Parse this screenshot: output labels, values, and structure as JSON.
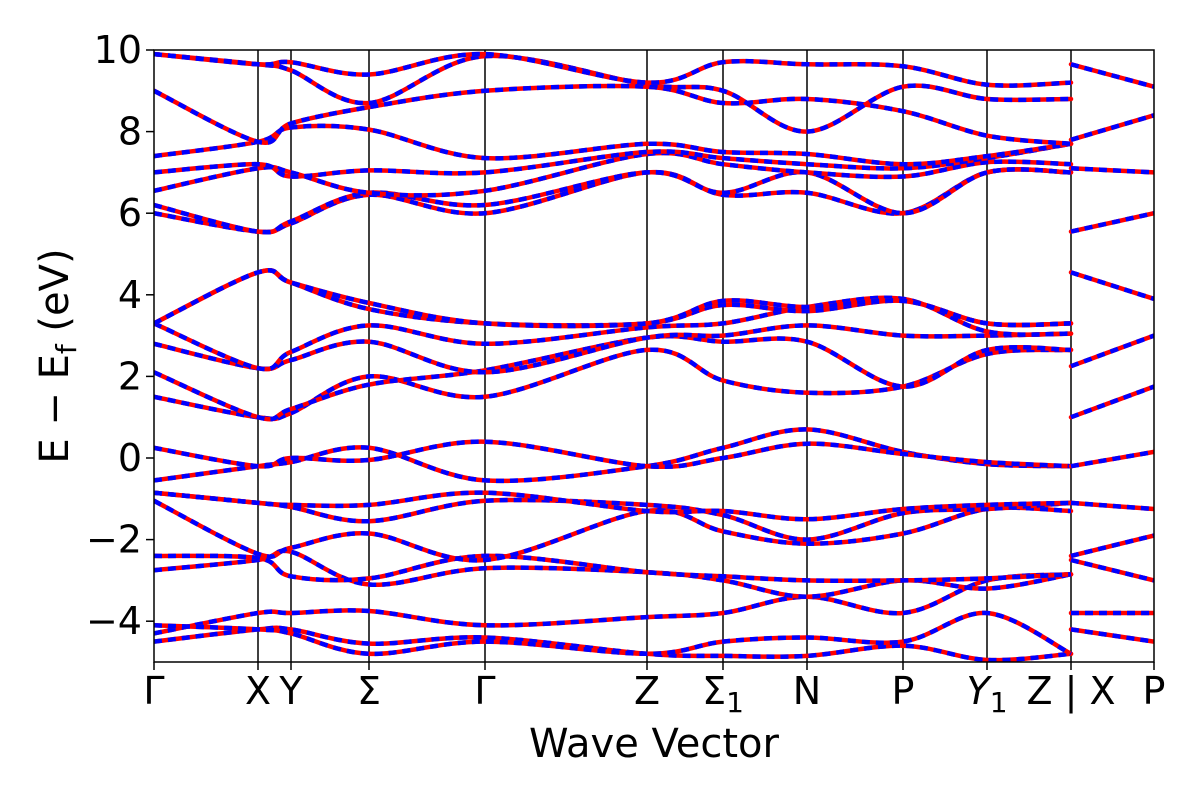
{
  "chart_data": {
    "type": "line",
    "title": "",
    "xlabel": "Wave Vector",
    "ylabel": "E − E_f (eV)",
    "ylabel_parts": {
      "main": "E  −  E",
      "sub": "f",
      "unit": " (eV)"
    },
    "ylim": [
      -5,
      10
    ],
    "yticks": [
      {
        "value": 10,
        "label": "10"
      },
      {
        "value": 8,
        "label": "8"
      },
      {
        "value": 6,
        "label": "6"
      },
      {
        "value": 4,
        "label": "4"
      },
      {
        "value": 2,
        "label": "2"
      },
      {
        "value": 0,
        "label": "0"
      },
      {
        "value": -2,
        "label": "−2"
      },
      {
        "value": -4,
        "label": "−4"
      }
    ],
    "xlim": [
      0,
      1
    ],
    "kpoints": [
      {
        "pos": 0.0,
        "label": "Γ",
        "sub": ""
      },
      {
        "pos": 0.104,
        "label": "X",
        "sub": ""
      },
      {
        "pos": 0.137,
        "label": "Y",
        "sub": ""
      },
      {
        "pos": 0.215,
        "label": "Σ",
        "sub": ""
      },
      {
        "pos": 0.331,
        "label": "Γ",
        "sub": ""
      },
      {
        "pos": 0.493,
        "label": "Z",
        "sub": ""
      },
      {
        "pos": 0.569,
        "label": "Σ",
        "sub": "1"
      },
      {
        "pos": 0.653,
        "label": "N",
        "sub": ""
      },
      {
        "pos": 0.749,
        "label": "P",
        "sub": ""
      },
      {
        "pos": 0.833,
        "label": "Y",
        "sub": "1"
      },
      {
        "pos": 0.917,
        "label": "Z | X",
        "sub": ""
      },
      {
        "pos": 1.0,
        "label": "P",
        "sub": ""
      }
    ],
    "path_break": 0.917,
    "series_style": {
      "primary_color": "#ff0000",
      "overlay_color": "#0000ff",
      "overlay_dash": true
    },
    "series": [
      {
        "x": [
          0,
          0.104,
          0.137,
          0.215,
          0.331,
          0.493,
          0.569,
          0.653,
          0.749,
          0.833,
          0.917
        ],
        "y": [
          -4.5,
          -4.2,
          -4.2,
          -4.55,
          -4.4,
          -4.8,
          -4.85,
          -4.85,
          -4.6,
          -4.95,
          -4.8
        ]
      },
      {
        "x": [
          0,
          0.104,
          0.137,
          0.215,
          0.331,
          0.493,
          0.569,
          0.653,
          0.749,
          0.833,
          0.917
        ],
        "y": [
          -4.3,
          -3.8,
          -3.8,
          -3.75,
          -4.1,
          -3.9,
          -3.8,
          -3.4,
          -3.8,
          -3.0,
          -2.85
        ]
      },
      {
        "x": [
          0,
          0.104,
          0.137,
          0.215,
          0.331,
          0.493,
          0.569,
          0.653,
          0.749,
          0.833,
          0.917
        ],
        "y": [
          -4.1,
          -4.2,
          -4.3,
          -4.8,
          -4.5,
          -4.8,
          -4.5,
          -4.4,
          -4.5,
          -3.8,
          -4.8
        ]
      },
      {
        "x": [
          0,
          0.104,
          0.137,
          0.215,
          0.331,
          0.493,
          0.569,
          0.653,
          0.749,
          0.833,
          0.917
        ],
        "y": [
          -2.75,
          -2.5,
          -2.3,
          -3.1,
          -2.7,
          -2.8,
          -3.0,
          -3.4,
          -3.0,
          -3.2,
          -2.85
        ]
      },
      {
        "x": [
          0,
          0.104,
          0.137,
          0.215,
          0.331,
          0.493,
          0.569,
          0.653,
          0.749,
          0.833,
          0.917
        ],
        "y": [
          -2.4,
          -2.45,
          -2.9,
          -2.95,
          -2.4,
          -2.8,
          -2.9,
          -3.0,
          -3.0,
          -2.95,
          -2.85
        ]
      },
      {
        "x": [
          0,
          0.104,
          0.137,
          0.215,
          0.331,
          0.493,
          0.569,
          0.653,
          0.749,
          0.833,
          0.917
        ],
        "y": [
          -1.05,
          -2.35,
          -2.2,
          -1.85,
          -2.5,
          -1.3,
          -1.8,
          -2.1,
          -1.85,
          -1.25,
          -1.3
        ]
      },
      {
        "x": [
          0,
          0.104,
          0.137,
          0.215,
          0.331,
          0.493,
          0.569,
          0.653,
          0.749,
          0.833,
          0.917
        ],
        "y": [
          -0.85,
          -1.1,
          -1.2,
          -1.55,
          -1.05,
          -1.15,
          -1.4,
          -2.0,
          -1.35,
          -1.25,
          -1.1
        ]
      },
      {
        "x": [
          0,
          0.104,
          0.137,
          0.215,
          0.331,
          0.493,
          0.569,
          0.653,
          0.749,
          0.833,
          0.917
        ],
        "y": [
          -0.85,
          -1.1,
          -1.15,
          -1.15,
          -0.85,
          -1.3,
          -1.3,
          -1.5,
          -1.25,
          -1.15,
          -1.1
        ]
      },
      {
        "x": [
          0,
          0.104,
          0.137,
          0.215,
          0.331,
          0.493,
          0.569,
          0.653,
          0.749,
          0.833,
          0.917
        ],
        "y": [
          -0.55,
          -0.2,
          -0.1,
          0.25,
          -0.55,
          -0.2,
          0.25,
          0.7,
          0.15,
          -0.15,
          -0.2
        ]
      },
      {
        "x": [
          0,
          0.104,
          0.137,
          0.215,
          0.331,
          0.493,
          0.569,
          0.653,
          0.749,
          0.833,
          0.917
        ],
        "y": [
          0.25,
          -0.2,
          0.0,
          -0.05,
          0.4,
          -0.2,
          0.0,
          0.35,
          0.1,
          -0.1,
          -0.2
        ]
      },
      {
        "x": [
          0,
          0.104,
          0.137,
          0.215,
          0.331,
          0.493,
          0.569,
          0.653,
          0.749,
          0.833,
          0.917
        ],
        "y": [
          1.5,
          1.0,
          1.1,
          2.0,
          1.5,
          2.65,
          1.9,
          1.6,
          1.75,
          2.55,
          2.65
        ]
      },
      {
        "x": [
          0,
          0.104,
          0.137,
          0.215,
          0.331,
          0.493,
          0.569,
          0.653,
          0.749,
          0.833,
          0.917
        ],
        "y": [
          2.1,
          1.0,
          1.2,
          1.8,
          2.15,
          2.95,
          2.85,
          2.85,
          1.75,
          2.65,
          2.65
        ]
      },
      {
        "x": [
          0,
          0.104,
          0.137,
          0.215,
          0.331,
          0.493,
          0.569,
          0.653,
          0.749,
          0.833,
          0.917
        ],
        "y": [
          2.8,
          2.2,
          2.4,
          2.85,
          2.1,
          2.95,
          3.0,
          3.25,
          3.0,
          3.0,
          3.05
        ]
      },
      {
        "x": [
          0,
          0.104,
          0.137,
          0.215,
          0.331,
          0.493,
          0.569,
          0.653,
          0.749,
          0.833,
          0.917
        ],
        "y": [
          3.3,
          2.2,
          2.6,
          3.25,
          2.8,
          3.2,
          3.3,
          3.7,
          3.9,
          3.1,
          3.05
        ]
      },
      {
        "x": [
          0,
          0.104,
          0.137,
          0.215,
          0.331,
          0.493,
          0.569,
          0.653,
          0.749,
          0.833,
          0.917
        ],
        "y": [
          3.3,
          4.55,
          4.3,
          3.65,
          3.3,
          3.3,
          3.75,
          3.6,
          3.85,
          3.3,
          3.3
        ]
      },
      {
        "x": [
          0,
          0.104,
          0.137,
          0.215,
          0.331,
          0.493,
          0.569,
          0.653,
          0.749,
          0.833,
          0.917
        ],
        "y": [
          3.3,
          4.55,
          4.3,
          3.8,
          3.3,
          3.3,
          3.85,
          3.7,
          3.85,
          3.3,
          3.3
        ]
      },
      {
        "x": [
          0,
          0.104,
          0.137,
          0.215,
          0.331,
          0.493,
          0.569,
          0.653,
          0.749,
          0.833,
          0.917
        ],
        "y": [
          6.0,
          5.55,
          5.75,
          6.45,
          6.0,
          7.0,
          6.45,
          6.5,
          6.0,
          7.0,
          7.0
        ]
      },
      {
        "x": [
          0,
          0.104,
          0.137,
          0.215,
          0.331,
          0.493,
          0.569,
          0.653,
          0.749,
          0.833,
          0.917
        ],
        "y": [
          6.2,
          5.55,
          5.8,
          6.5,
          6.2,
          7.0,
          6.5,
          7.0,
          6.0,
          7.0,
          7.0
        ]
      },
      {
        "x": [
          0,
          0.104,
          0.137,
          0.215,
          0.331,
          0.493,
          0.569,
          0.653,
          0.749,
          0.833,
          0.917
        ],
        "y": [
          6.55,
          7.1,
          7.0,
          6.5,
          6.55,
          7.45,
          7.2,
          7.0,
          6.9,
          7.25,
          7.2
        ]
      },
      {
        "x": [
          0,
          0.104,
          0.137,
          0.215,
          0.331,
          0.493,
          0.569,
          0.653,
          0.749,
          0.833,
          0.917
        ],
        "y": [
          7.0,
          7.2,
          6.9,
          7.05,
          7.0,
          7.5,
          7.35,
          7.2,
          7.1,
          7.35,
          7.7
        ]
      },
      {
        "x": [
          0,
          0.104,
          0.137,
          0.215,
          0.331,
          0.493,
          0.569,
          0.653,
          0.749,
          0.833,
          0.917
        ],
        "y": [
          7.4,
          7.75,
          8.1,
          8.05,
          7.35,
          7.7,
          7.5,
          7.45,
          7.2,
          7.4,
          7.7
        ]
      },
      {
        "x": [
          0,
          0.104,
          0.137,
          0.215,
          0.331,
          0.493,
          0.569,
          0.653,
          0.749,
          0.833,
          0.917
        ],
        "y": [
          9.0,
          7.75,
          8.2,
          8.6,
          9.0,
          9.1,
          8.7,
          8.8,
          8.5,
          7.9,
          7.7
        ]
      },
      {
        "x": [
          0,
          0.104,
          0.137,
          0.215,
          0.331,
          0.493,
          0.569,
          0.653,
          0.749,
          0.833,
          0.917
        ],
        "y": [
          9.9,
          9.65,
          9.5,
          8.7,
          9.85,
          9.15,
          9.0,
          8.0,
          9.1,
          8.8,
          8.8
        ]
      },
      {
        "x": [
          0,
          0.104,
          0.137,
          0.215,
          0.331,
          0.493,
          0.569,
          0.653,
          0.749,
          0.833,
          0.917
        ],
        "y": [
          9.9,
          9.65,
          9.7,
          9.4,
          9.9,
          9.2,
          9.7,
          9.65,
          9.6,
          9.15,
          9.2
        ]
      },
      {
        "x": [
          0.917,
          1.0
        ],
        "y": [
          -4.2,
          -4.5
        ]
      },
      {
        "x": [
          0.917,
          1.0
        ],
        "y": [
          -3.8,
          -3.8
        ]
      },
      {
        "x": [
          0.917,
          1.0
        ],
        "y": [
          -2.5,
          -3.0
        ]
      },
      {
        "x": [
          0.917,
          1.0
        ],
        "y": [
          -2.4,
          -1.9
        ]
      },
      {
        "x": [
          0.917,
          1.0
        ],
        "y": [
          -1.1,
          -1.25
        ]
      },
      {
        "x": [
          0.917,
          1.0
        ],
        "y": [
          -0.2,
          0.15
        ]
      },
      {
        "x": [
          0.917,
          1.0
        ],
        "y": [
          1.0,
          1.75
        ]
      },
      {
        "x": [
          0.917,
          1.0
        ],
        "y": [
          2.25,
          3.0
        ]
      },
      {
        "x": [
          0.917,
          1.0
        ],
        "y": [
          4.55,
          3.9
        ]
      },
      {
        "x": [
          0.917,
          1.0
        ],
        "y": [
          5.55,
          6.0
        ]
      },
      {
        "x": [
          0.917,
          1.0
        ],
        "y": [
          7.1,
          7.0
        ]
      },
      {
        "x": [
          0.917,
          1.0
        ],
        "y": [
          7.8,
          8.4
        ]
      },
      {
        "x": [
          0.917,
          1.0
        ],
        "y": [
          9.65,
          9.1
        ]
      }
    ]
  }
}
